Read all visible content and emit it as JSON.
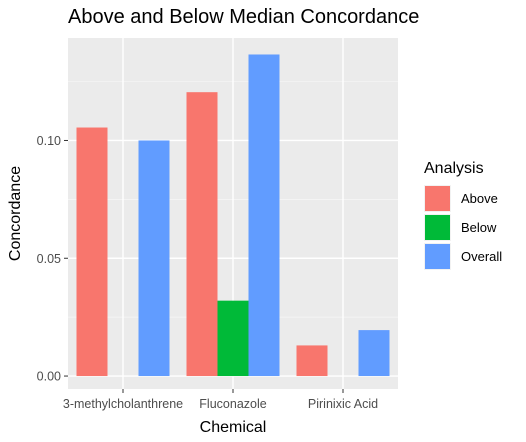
{
  "chart_data": {
    "type": "bar",
    "title": "Above and Below Median Concordance",
    "xlabel": "Chemical",
    "ylabel": "Concordance",
    "categories": [
      "3-methylcholanthrene",
      "Fluconazole",
      "Pirinixic Acid"
    ],
    "ylim": [
      -0.0055,
      0.1435
    ],
    "yticks": [
      0.0,
      0.05,
      0.1
    ],
    "ytick_labels": [
      "0.00",
      "0.05",
      "0.10"
    ],
    "grid": true,
    "legend": {
      "title": "Analysis",
      "position": "right"
    },
    "series": [
      {
        "name": "Above",
        "color": "#F8766D",
        "values": [
          0.1055,
          0.1205,
          0.013
        ]
      },
      {
        "name": "Below",
        "color": "#00BA38",
        "values": [
          null,
          0.032,
          null
        ]
      },
      {
        "name": "Overall",
        "color": "#619CFF",
        "values": [
          0.1,
          0.1365,
          0.0195
        ]
      }
    ]
  }
}
